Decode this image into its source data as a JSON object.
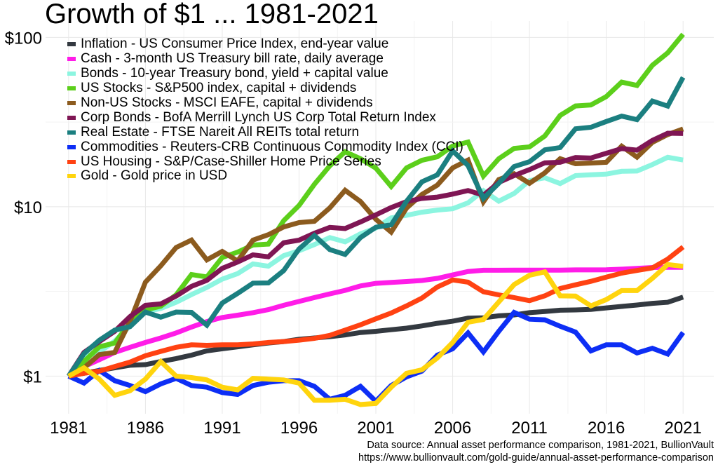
{
  "chart_data": {
    "type": "line",
    "title": "Growth of $1 ... 1981-2021",
    "xlabel": "",
    "ylabel": "",
    "y_scale": "log",
    "ylim": [
      0.6,
      125
    ],
    "xlim": [
      1979.5,
      2023
    ],
    "grid": true,
    "legend_position": "top-left",
    "x_ticks": [
      1981,
      1986,
      1991,
      1996,
      2001,
      2006,
      2011,
      2016,
      2021
    ],
    "x_tick_labels": [
      "1981",
      "1986",
      "1991",
      "1996",
      "2001",
      "2006",
      "2011",
      "2016",
      "2021"
    ],
    "y_ticks": [
      1,
      10,
      100
    ],
    "y_tick_labels": [
      "$1",
      "$10",
      "$100"
    ],
    "x": [
      1981,
      1982,
      1983,
      1984,
      1985,
      1986,
      1987,
      1988,
      1989,
      1990,
      1991,
      1992,
      1993,
      1994,
      1995,
      1996,
      1997,
      1998,
      1999,
      2000,
      2001,
      2002,
      2003,
      2004,
      2005,
      2006,
      2007,
      2008,
      2009,
      2010,
      2011,
      2012,
      2013,
      2014,
      2015,
      2016,
      2017,
      2018,
      2019,
      2020,
      2021
    ],
    "series": [
      {
        "name": "Inflation - US Consumer Price Index, end-year value",
        "color": "#333940",
        "values": [
          1.0,
          1.04,
          1.08,
          1.12,
          1.16,
          1.17,
          1.22,
          1.27,
          1.33,
          1.41,
          1.45,
          1.49,
          1.53,
          1.57,
          1.6,
          1.65,
          1.68,
          1.71,
          1.75,
          1.81,
          1.84,
          1.88,
          1.92,
          1.98,
          2.05,
          2.11,
          2.2,
          2.21,
          2.27,
          2.3,
          2.37,
          2.41,
          2.45,
          2.46,
          2.48,
          2.53,
          2.58,
          2.63,
          2.69,
          2.73,
          2.93
        ]
      },
      {
        "name": "Cash - 3-month US Treasury bill rate, daily average",
        "color": "#ff1ce8",
        "values": [
          1.0,
          1.14,
          1.25,
          1.38,
          1.48,
          1.58,
          1.68,
          1.8,
          1.95,
          2.1,
          2.22,
          2.29,
          2.37,
          2.47,
          2.62,
          2.76,
          2.91,
          3.06,
          3.21,
          3.41,
          3.53,
          3.58,
          3.62,
          3.67,
          3.78,
          3.96,
          4.15,
          4.22,
          4.22,
          4.23,
          4.23,
          4.23,
          4.23,
          4.24,
          4.24,
          4.25,
          4.28,
          4.33,
          4.38,
          4.39,
          4.39
        ]
      },
      {
        "name": "Bonds - 10-year Treasury bond, yield + capital value",
        "color": "#8cf5e0",
        "values": [
          1.0,
          1.3,
          1.39,
          1.61,
          1.98,
          2.4,
          2.51,
          2.73,
          3.03,
          3.34,
          3.74,
          4.03,
          4.6,
          4.46,
          5.15,
          5.5,
          5.98,
          6.58,
          6.21,
          6.92,
          7.49,
          8.6,
          8.9,
          9.29,
          9.56,
          9.74,
          10.55,
          12.46,
          10.79,
          11.99,
          14.27,
          14.84,
          13.71,
          15.29,
          15.45,
          15.6,
          16.2,
          16.26,
          17.76,
          19.6,
          18.89
        ]
      },
      {
        "name": "US Stocks - S&P500 index, capital + dividends",
        "color": "#5ccf1b",
        "values": [
          1.0,
          1.22,
          1.49,
          1.57,
          2.07,
          2.46,
          2.59,
          3.02,
          3.98,
          3.85,
          5.02,
          5.4,
          5.95,
          6.02,
          8.28,
          10.18,
          13.58,
          17.46,
          21.13,
          19.22,
          16.93,
          13.19,
          16.97,
          18.82,
          19.74,
          22.86,
          24.11,
          15.19,
          19.21,
          22.1,
          22.57,
          26.18,
          34.65,
          39.39,
          39.94,
          44.72,
          54.48,
          52.09,
          68.49,
          81.09,
          104.37
        ]
      },
      {
        "name": "Non-US Stocks - MSCI EAFE, capital + dividends",
        "color": "#8c5b1e",
        "values": [
          1.0,
          1.12,
          1.34,
          1.38,
          2.11,
          3.59,
          4.48,
          5.75,
          6.36,
          4.86,
          5.45,
          4.79,
          6.35,
          6.84,
          7.61,
          8.07,
          8.21,
          9.85,
          12.51,
          10.74,
          8.44,
          7.09,
          9.83,
          11.83,
          13.43,
          16.97,
          18.87,
          10.7,
          14.48,
          15.67,
          13.77,
          15.87,
          19.23,
          17.96,
          18.14,
          18.32,
          22.79,
          19.65,
          24.02,
          26.71,
          28.81
        ]
      },
      {
        "name": "Corp Bonds - BofA Merrill Lynch US Corp Total Return Index",
        "color": "#7f1654",
        "values": [
          1.0,
          1.38,
          1.6,
          1.84,
          2.25,
          2.62,
          2.67,
          2.97,
          3.39,
          3.68,
          4.33,
          4.72,
          5.2,
          5.07,
          6.13,
          6.35,
          6.98,
          7.56,
          7.44,
          8.14,
          8.96,
          9.9,
          10.73,
          11.2,
          11.41,
          11.89,
          12.48,
          11.71,
          13.92,
          15.28,
          16.57,
          18.18,
          18.33,
          19.54,
          19.41,
          20.71,
          22.07,
          21.6,
          24.68,
          27.18,
          27.09
        ]
      },
      {
        "name": "Real Estate - FTSE Nareit All REITs total return",
        "color": "#1b7f80",
        "values": [
          1.0,
          1.36,
          1.63,
          1.87,
          1.96,
          2.39,
          2.23,
          2.39,
          2.38,
          2.0,
          2.7,
          3.08,
          3.54,
          3.55,
          4.2,
          5.64,
          6.77,
          5.59,
          5.23,
          6.58,
          7.57,
          7.83,
          10.78,
          14.04,
          15.44,
          21.38,
          17.52,
          11.21,
          13.75,
          17.28,
          18.46,
          21.7,
          22.39,
          28.86,
          29.48,
          31.89,
          34.3,
          32.72,
          42.1,
          39.33,
          58.07
        ]
      },
      {
        "name": "Commodities - Reuters-CRB Continuous Commodity Index (CCI)",
        "color": "#0d2ef5",
        "values": [
          1.0,
          0.91,
          1.08,
          0.94,
          0.88,
          0.81,
          0.9,
          0.97,
          0.88,
          0.86,
          0.8,
          0.78,
          0.88,
          0.92,
          0.94,
          0.94,
          0.87,
          0.73,
          0.77,
          0.87,
          0.71,
          0.88,
          0.99,
          1.07,
          1.33,
          1.45,
          1.8,
          1.39,
          1.84,
          2.38,
          2.17,
          2.15,
          1.97,
          1.82,
          1.41,
          1.53,
          1.53,
          1.37,
          1.46,
          1.35,
          1.81
        ]
      },
      {
        "name": "US Housing - S&P/Case-Shiller Home Price Series",
        "color": "#ff4212",
        "values": [
          1.0,
          1.04,
          1.07,
          1.14,
          1.21,
          1.32,
          1.4,
          1.48,
          1.53,
          1.52,
          1.53,
          1.53,
          1.55,
          1.58,
          1.6,
          1.63,
          1.67,
          1.74,
          1.87,
          2.01,
          2.18,
          2.36,
          2.6,
          2.89,
          3.36,
          3.7,
          3.59,
          3.15,
          3.02,
          2.91,
          2.79,
          2.98,
          3.29,
          3.46,
          3.63,
          3.84,
          4.06,
          4.21,
          4.36,
          4.91,
          5.79
        ]
      },
      {
        "name": "Gold - Gold price in USD",
        "color": "#ffd40d",
        "values": [
          1.0,
          1.12,
          0.96,
          0.77,
          0.82,
          0.96,
          1.22,
          1.0,
          0.98,
          0.95,
          0.86,
          0.83,
          0.97,
          0.96,
          0.95,
          0.91,
          0.72,
          0.72,
          0.73,
          0.68,
          0.69,
          0.86,
          1.04,
          1.09,
          1.28,
          1.58,
          2.08,
          2.16,
          2.74,
          3.47,
          3.94,
          4.13,
          2.98,
          2.97,
          2.6,
          2.83,
          3.2,
          3.2,
          3.78,
          4.56,
          4.45
        ]
      }
    ]
  },
  "source": {
    "line1": "Data source: Annual asset performance comparison, 1981-2021, BullionVault",
    "line2": "https://www.bullionvault.com/gold-guide/annual-asset-performance-comparison"
  }
}
